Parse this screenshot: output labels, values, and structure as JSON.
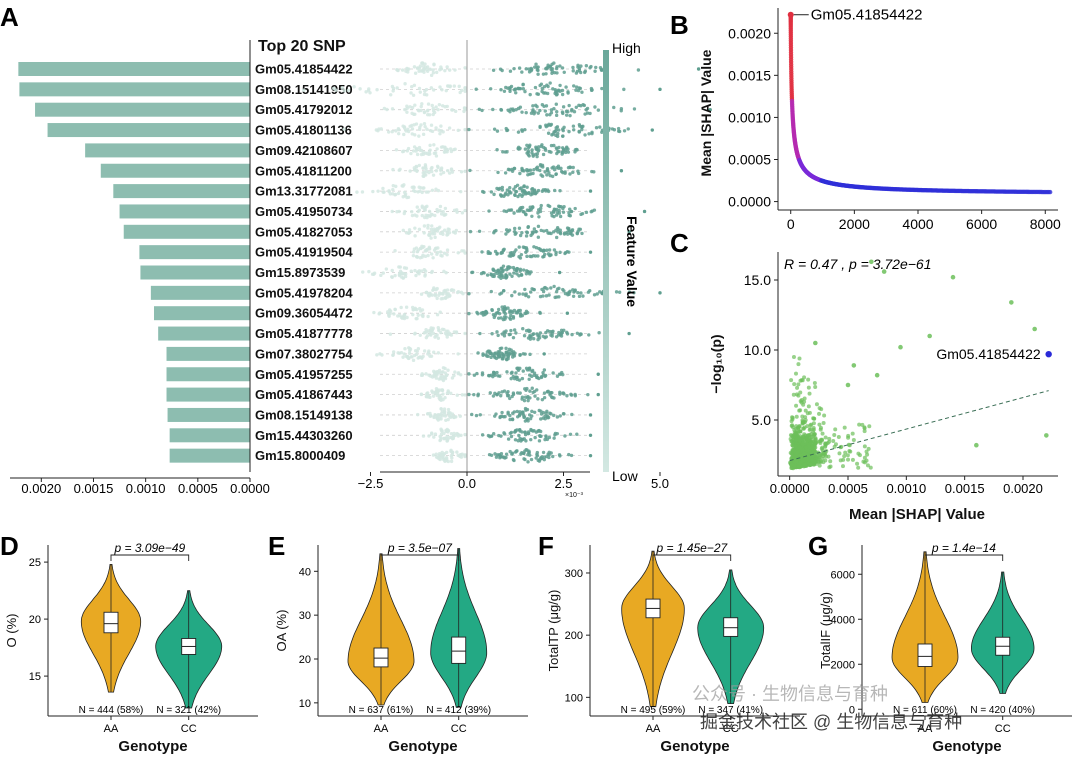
{
  "panel_labels": [
    "A",
    "B",
    "C",
    "D",
    "E",
    "F",
    "G"
  ],
  "watermark": {
    "line1": "公众号 · 生物信息与育种",
    "line2": "掘金技术社区 @ 生物信息与育种"
  },
  "colors": {
    "bar": "#8dbdb0",
    "beeswarm": "#5f9f90",
    "grad_high": "#6aa89a",
    "grad_low": "#d3e8e2",
    "scatter_red": "#e03040",
    "scatter_purple": "#7a2ad8",
    "scatter_blue": "#3030d8",
    "green": "#6cbf5a",
    "highlight": "#2a2ad8",
    "orange": "#e8a923",
    "teal": "#23a984"
  },
  "chart_data": [
    {
      "id": "A-bar",
      "type": "bar",
      "orientation": "horizontal-reversed",
      "title": "Top 20 SNP",
      "categories": [
        "Gm05.41854422",
        "Gm08.15141950",
        "Gm05.41792012",
        "Gm05.41801136",
        "Gm09.42108607",
        "Gm05.41811200",
        "Gm13.31772081",
        "Gm05.41950734",
        "Gm05.41827053",
        "Gm05.41919504",
        "Gm15.8973539",
        "Gm05.41978204",
        "Gm09.36054472",
        "Gm05.41877778",
        "Gm07.38027754",
        "Gm05.41957255",
        "Gm05.41867443",
        "Gm08.15149138",
        "Gm15.44303260",
        "Gm15.8000409"
      ],
      "values": [
        0.00222,
        0.00221,
        0.00206,
        0.00194,
        0.00158,
        0.00143,
        0.00131,
        0.00125,
        0.00121,
        0.00106,
        0.00105,
        0.00095,
        0.00092,
        0.00088,
        0.0008,
        0.0008,
        0.0008,
        0.00079,
        0.00077,
        0.00077
      ],
      "xlim": [
        0,
        0.0023
      ],
      "xticks": [
        0.002,
        0.0015,
        0.001,
        0.0005,
        0.0
      ],
      "xtick_labels": [
        "0.0020",
        "0.0015",
        "0.0010",
        "0.0005",
        "0.0000"
      ]
    },
    {
      "id": "A-beeswarm",
      "type": "scatter",
      "subtype": "beeswarm",
      "xlim": [
        -5,
        7
      ],
      "xticks": [
        -2.5,
        0.0,
        2.5,
        5.0
      ],
      "xtick_labels": [
        "−2.5",
        "0.0",
        "2.5",
        "5.0"
      ],
      "x_multiplier": "×10⁻³",
      "colorbar": {
        "label": "Feature Value",
        "high": "High",
        "low": "Low"
      },
      "rows": [
        {
          "neg_center": -1.0,
          "neg_spread": 1.1,
          "pos_center": 2.3,
          "pos_spread": 1.8,
          "max": 6.0
        },
        {
          "neg_center": -1.5,
          "neg_spread": 2.5,
          "pos_center": 2.0,
          "pos_spread": 1.8,
          "max": 5.0
        },
        {
          "neg_center": -1.0,
          "neg_spread": 1.2,
          "pos_center": 2.5,
          "pos_spread": 2.0,
          "max": 6.3
        },
        {
          "neg_center": -1.2,
          "neg_spread": 1.3,
          "pos_center": 2.5,
          "pos_spread": 1.8,
          "max": 4.8
        },
        {
          "neg_center": -1.0,
          "neg_spread": 0.9,
          "pos_center": 1.9,
          "pos_spread": 1.3,
          "max": 3.6
        },
        {
          "neg_center": -1.0,
          "neg_spread": 0.9,
          "pos_center": 2.0,
          "pos_spread": 1.5,
          "max": 4.0
        },
        {
          "neg_center": -1.6,
          "neg_spread": 1.2,
          "pos_center": 1.2,
          "pos_spread": 1.0,
          "max": 3.2
        },
        {
          "neg_center": -1.0,
          "neg_spread": 1.0,
          "pos_center": 2.1,
          "pos_spread": 1.6,
          "max": 4.6
        },
        {
          "neg_center": -1.0,
          "neg_spread": 0.9,
          "pos_center": 2.0,
          "pos_spread": 1.5,
          "max": 4.2
        },
        {
          "neg_center": -1.0,
          "neg_spread": 1.0,
          "pos_center": 1.6,
          "pos_spread": 1.2,
          "max": 3.2
        },
        {
          "neg_center": -1.6,
          "neg_spread": 1.1,
          "pos_center": 1.0,
          "pos_spread": 0.8,
          "max": 2.4
        },
        {
          "neg_center": -0.7,
          "neg_spread": 0.6,
          "pos_center": 2.2,
          "pos_spread": 1.8,
          "max": 5.0
        },
        {
          "neg_center": -1.5,
          "neg_spread": 1.0,
          "pos_center": 1.0,
          "pos_spread": 0.8,
          "max": 2.6
        },
        {
          "neg_center": -0.8,
          "neg_spread": 0.7,
          "pos_center": 1.8,
          "pos_spread": 1.5,
          "max": 4.2
        },
        {
          "neg_center": -1.4,
          "neg_spread": 0.8,
          "pos_center": 0.9,
          "pos_spread": 0.6,
          "max": 2.0
        },
        {
          "neg_center": -0.6,
          "neg_spread": 0.5,
          "pos_center": 1.5,
          "pos_spread": 1.3,
          "max": 3.4
        },
        {
          "neg_center": -0.7,
          "neg_spread": 0.5,
          "pos_center": 1.6,
          "pos_spread": 1.3,
          "max": 3.4
        },
        {
          "neg_center": -0.6,
          "neg_spread": 0.5,
          "pos_center": 1.5,
          "pos_spread": 1.2,
          "max": 3.2
        },
        {
          "neg_center": -0.6,
          "neg_spread": 0.5,
          "pos_center": 1.6,
          "pos_spread": 1.2,
          "max": 3.2
        },
        {
          "neg_center": -0.5,
          "neg_spread": 0.5,
          "pos_center": 1.6,
          "pos_spread": 1.2,
          "max": 3.2
        }
      ]
    },
    {
      "id": "B",
      "type": "scatter",
      "ylabel": "Mean |SHAP| Value",
      "xlim": [
        -400,
        8400
      ],
      "ylim": [
        -0.0001,
        0.0023
      ],
      "xticks": [
        0,
        2000,
        4000,
        6000,
        8000
      ],
      "xtick_labels": [
        "0",
        "2000",
        "4000",
        "6000",
        "8000"
      ],
      "yticks": [
        0.0,
        0.0005,
        0.001,
        0.0015,
        0.002
      ],
      "ytick_labels": [
        "0.0000",
        "0.0005",
        "0.0010",
        "0.0015",
        "0.0020"
      ],
      "annotation": {
        "label": "Gm05.41854422",
        "x": 0,
        "y": 0.00222
      },
      "curve": {
        "n_points": 8200,
        "description": "sorted mean |SHAP| values, decaying curve"
      }
    },
    {
      "id": "C",
      "type": "scatter",
      "xlabel": "Mean |SHAP| Value",
      "ylabel": "−log₁₀(p)",
      "stat_text": "R = 0.47 , p = 3.72e−61",
      "xlim": [
        -0.0001,
        0.0023
      ],
      "ylim": [
        1.0,
        17.0
      ],
      "xticks": [
        0.0,
        0.0005,
        0.001,
        0.0015,
        0.002
      ],
      "xtick_labels": [
        "0.0000",
        "0.0005",
        "0.0010",
        "0.0015",
        "0.0020"
      ],
      "yticks": [
        5.0,
        10.0,
        15.0
      ],
      "ytick_labels": [
        "5.0",
        "10.0",
        "15.0"
      ],
      "highlight": {
        "label": "Gm05.41854422",
        "x": 0.00222,
        "y": 9.7
      },
      "trend": {
        "x0": 0.0,
        "y0": 2.1,
        "x1": 0.00222,
        "y1": 7.1
      },
      "outliers": [
        [
          0.0007,
          16.3
        ],
        [
          0.00081,
          15.6
        ],
        [
          0.0014,
          15.2
        ],
        [
          0.0019,
          13.4
        ],
        [
          0.00095,
          10.2
        ],
        [
          0.0021,
          11.5
        ],
        [
          0.00022,
          10.5
        ],
        [
          0.0012,
          11.0
        ],
        [
          0.0016,
          3.2
        ],
        [
          0.0022,
          3.9
        ],
        [
          0.00075,
          8.2
        ],
        [
          0.0005,
          7.5
        ],
        [
          0.00055,
          8.9
        ]
      ]
    },
    {
      "id": "D",
      "type": "violin",
      "xlabel": "Genotype",
      "ylabel": "O (%)",
      "categories": [
        "AA",
        "CC"
      ],
      "p_text": "p = 3.09e−49",
      "counts": [
        "N = 444 (58%)",
        "N = 321 (42%)"
      ],
      "ylim": [
        11.5,
        26.5
      ],
      "yticks": [
        15,
        20,
        25
      ],
      "ytick_labels": [
        "15",
        "20",
        "25"
      ],
      "groups": [
        {
          "min": 13.6,
          "q1": 18.8,
          "median": 19.6,
          "q3": 20.6,
          "max": 24.8,
          "mode": 19.8,
          "width": 0.9
        },
        {
          "min": 12.2,
          "q1": 16.9,
          "median": 17.6,
          "q3": 18.3,
          "max": 22.5,
          "mode": 17.6,
          "width": 1.0
        }
      ]
    },
    {
      "id": "E",
      "type": "violin",
      "xlabel": "Genotype",
      "ylabel": "OA (%)",
      "categories": [
        "AA",
        "CC"
      ],
      "p_text": "p = 3.5e−07",
      "counts": [
        "N = 637 (61%)",
        "N = 412 (39%)"
      ],
      "ylim": [
        7,
        46
      ],
      "yticks": [
        10,
        20,
        30,
        40
      ],
      "ytick_labels": [
        "10",
        "20",
        "30",
        "40"
      ],
      "groups": [
        {
          "min": 9.5,
          "q1": 18.2,
          "median": 20.2,
          "q3": 22.5,
          "max": 44.0,
          "mode": 19.5,
          "width": 1.0
        },
        {
          "min": 9.0,
          "q1": 19.0,
          "median": 21.8,
          "q3": 25.0,
          "max": 45.2,
          "mode": 21.5,
          "width": 0.85
        }
      ]
    },
    {
      "id": "F",
      "type": "violin",
      "xlabel": "Genotype",
      "ylabel": "TotalTP (μg/g)",
      "categories": [
        "AA",
        "CC"
      ],
      "p_text": "p = 1.45e−27",
      "counts": [
        "N = 495 (59%)",
        "N = 347 (41%)"
      ],
      "ylim": [
        70,
        345
      ],
      "yticks": [
        100,
        200,
        300
      ],
      "ytick_labels": [
        "100",
        "200",
        "300"
      ],
      "groups": [
        {
          "min": 85,
          "q1": 228,
          "median": 243,
          "q3": 258,
          "max": 335,
          "mode": 243,
          "width": 0.95
        },
        {
          "min": 90,
          "q1": 198,
          "median": 212,
          "q3": 228,
          "max": 305,
          "mode": 212,
          "width": 1.0
        }
      ]
    },
    {
      "id": "G",
      "type": "violin",
      "xlabel": "Genotype",
      "ylabel": "TotalIF (μg/g)",
      "categories": [
        "AA",
        "CC"
      ],
      "p_text": "p = 1.4e−14",
      "counts": [
        "N = 611 (60%)",
        "N = 420 (40%)"
      ],
      "ylim": [
        -300,
        7300
      ],
      "yticks": [
        0,
        2000,
        4000,
        6000
      ],
      "ytick_labels": [
        "0",
        "2000",
        "4000",
        "6000"
      ],
      "groups": [
        {
          "min": 300,
          "q1": 1900,
          "median": 2350,
          "q3": 2900,
          "max": 7000,
          "mode": 2300,
          "width": 1.0
        },
        {
          "min": 700,
          "q1": 2400,
          "median": 2800,
          "q3": 3200,
          "max": 6100,
          "mode": 2700,
          "width": 0.95
        }
      ]
    }
  ]
}
